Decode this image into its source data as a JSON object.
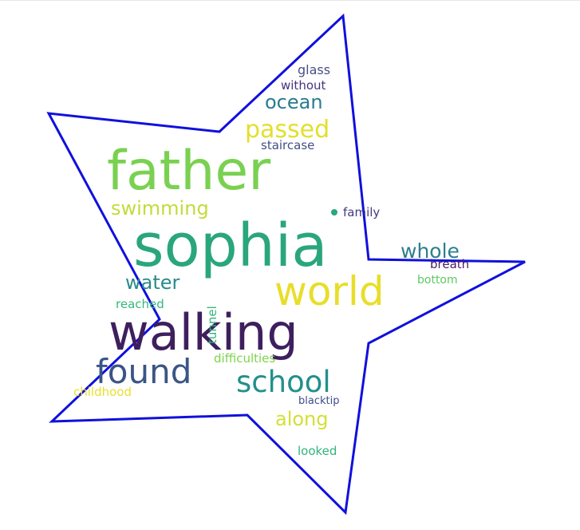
{
  "wordcloud": {
    "outline_color": "#1010dd",
    "words": [
      {
        "text": "sophia",
        "color": "#2aa67c"
      },
      {
        "text": "father",
        "color": "#7ad151"
      },
      {
        "text": "walking",
        "color": "#3e1f5e"
      },
      {
        "text": "world",
        "color": "#e8de2a"
      },
      {
        "text": "found",
        "color": "#3a5586"
      },
      {
        "text": "school",
        "color": "#22908c"
      },
      {
        "text": "passed",
        "color": "#e3df2c"
      },
      {
        "text": "ocean",
        "color": "#2a7b8e"
      },
      {
        "text": "swimming",
        "color": "#c4db3a"
      },
      {
        "text": "whole",
        "color": "#2b7f8e"
      },
      {
        "text": "water",
        "color": "#2a8a8c"
      },
      {
        "text": "along",
        "color": "#d4df36"
      },
      {
        "text": "staircase",
        "color": "#454e85"
      },
      {
        "text": "glass",
        "color": "#4a4f84"
      },
      {
        "text": "without",
        "color": "#46327e"
      },
      {
        "text": "family",
        "color": "#433a82"
      },
      {
        "text": "breath",
        "color": "#4a1c68"
      },
      {
        "text": "bottom",
        "color": "#5ec962"
      },
      {
        "text": "reached",
        "color": "#34b87a"
      },
      {
        "text": "tunnel",
        "color": "#32b57b"
      },
      {
        "text": "difficulties",
        "color": "#7fd34e"
      },
      {
        "text": "childhood",
        "color": "#e8e030"
      },
      {
        "text": "blacktip",
        "color": "#3c4f88"
      },
      {
        "text": "looked",
        "color": "#31b47c"
      }
    ]
  }
}
